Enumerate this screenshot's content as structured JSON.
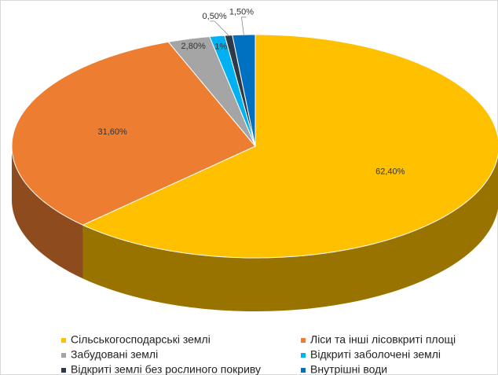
{
  "chart_data": {
    "type": "pie",
    "categories": [
      "Сільськогосподарські землі",
      "Ліси та інші лісовкриті площі",
      "Забудовані землі",
      "Відкриті заболочені землі",
      "Відкриті землі без рослиного покриву",
      "Внутрішні води"
    ],
    "values": [
      62.4,
      31.6,
      2.8,
      1,
      0.5,
      1.5
    ],
    "value_labels": [
      "62,40%",
      "31,60%",
      "2,80%",
      "1%",
      "0,50%",
      "1,50%"
    ],
    "colors": [
      "#FFC000",
      "#ED7D31",
      "#A5A5A5",
      "#00B0F0",
      "#2F3A48",
      "#0070C0"
    ]
  }
}
